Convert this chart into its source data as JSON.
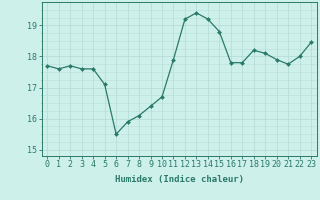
{
  "x": [
    0,
    1,
    2,
    3,
    4,
    5,
    6,
    7,
    8,
    9,
    10,
    11,
    12,
    13,
    14,
    15,
    16,
    17,
    18,
    19,
    20,
    21,
    22,
    23
  ],
  "y": [
    17.7,
    17.6,
    17.7,
    17.6,
    17.6,
    17.1,
    15.5,
    15.9,
    16.1,
    16.4,
    16.7,
    17.9,
    19.2,
    19.4,
    19.2,
    18.8,
    17.8,
    17.8,
    18.2,
    18.1,
    17.9,
    17.75,
    18.0,
    18.45
  ],
  "line_color": "#2a7a6a",
  "marker": "D",
  "marker_size": 2.0,
  "bg_color": "#cef0eb",
  "grid_color": "#b8ddd8",
  "xlabel": "Humidex (Indice chaleur)",
  "ylim": [
    14.8,
    19.75
  ],
  "xlim": [
    -0.5,
    23.5
  ],
  "yticks": [
    15,
    16,
    17,
    18,
    19
  ],
  "xticks": [
    0,
    1,
    2,
    3,
    4,
    5,
    6,
    7,
    8,
    9,
    10,
    11,
    12,
    13,
    14,
    15,
    16,
    17,
    18,
    19,
    20,
    21,
    22,
    23
  ],
  "tick_color": "#2a7a6a",
  "label_fontsize": 6.5,
  "tick_fontsize": 6.0,
  "linewidth": 0.9
}
